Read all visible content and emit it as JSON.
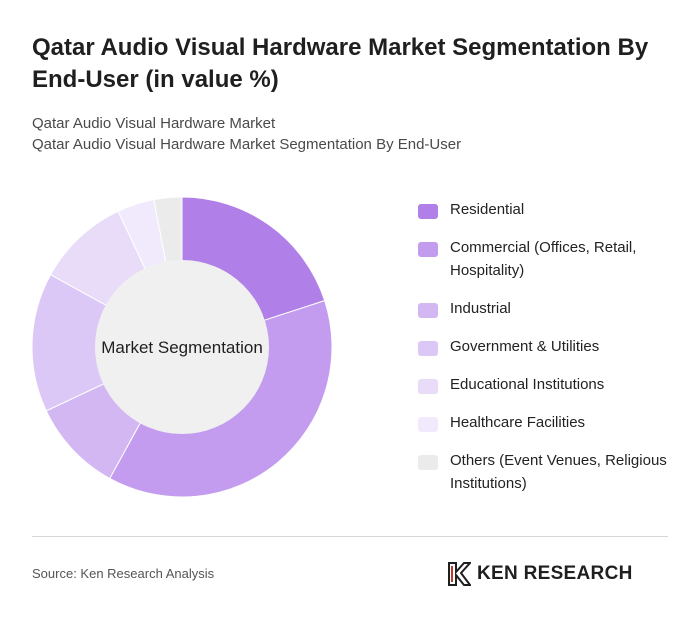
{
  "header": {
    "title": "Qatar Audio Visual Hardware Market Segmentation By End-User (in value %)",
    "subtitle_line1": "Qatar Audio Visual Hardware Market",
    "subtitle_line2": "Qatar Audio Visual Hardware Market Segmentation By End-User"
  },
  "chart_data": {
    "type": "pie",
    "donut": true,
    "center_label": "Market Segmentation",
    "categories": [
      "Residential",
      "Commercial (Offices, Retail, Hospitality)",
      "Industrial",
      "Government & Utilities",
      "Educational Institutions",
      "Healthcare Facilities",
      "Others (Event Venues, Religious Institutions)"
    ],
    "values": [
      20,
      38,
      10,
      15,
      10,
      4,
      3
    ],
    "colors": [
      "#b07fe7",
      "#c39cef",
      "#d3b7f3",
      "#dcc8f6",
      "#e9dcf9",
      "#f1eafc",
      "#ebebeb"
    ],
    "legend_position": "right"
  },
  "footer": {
    "source": "Source: Ken Research Analysis",
    "logo_text": "KEN RESEARCH"
  }
}
